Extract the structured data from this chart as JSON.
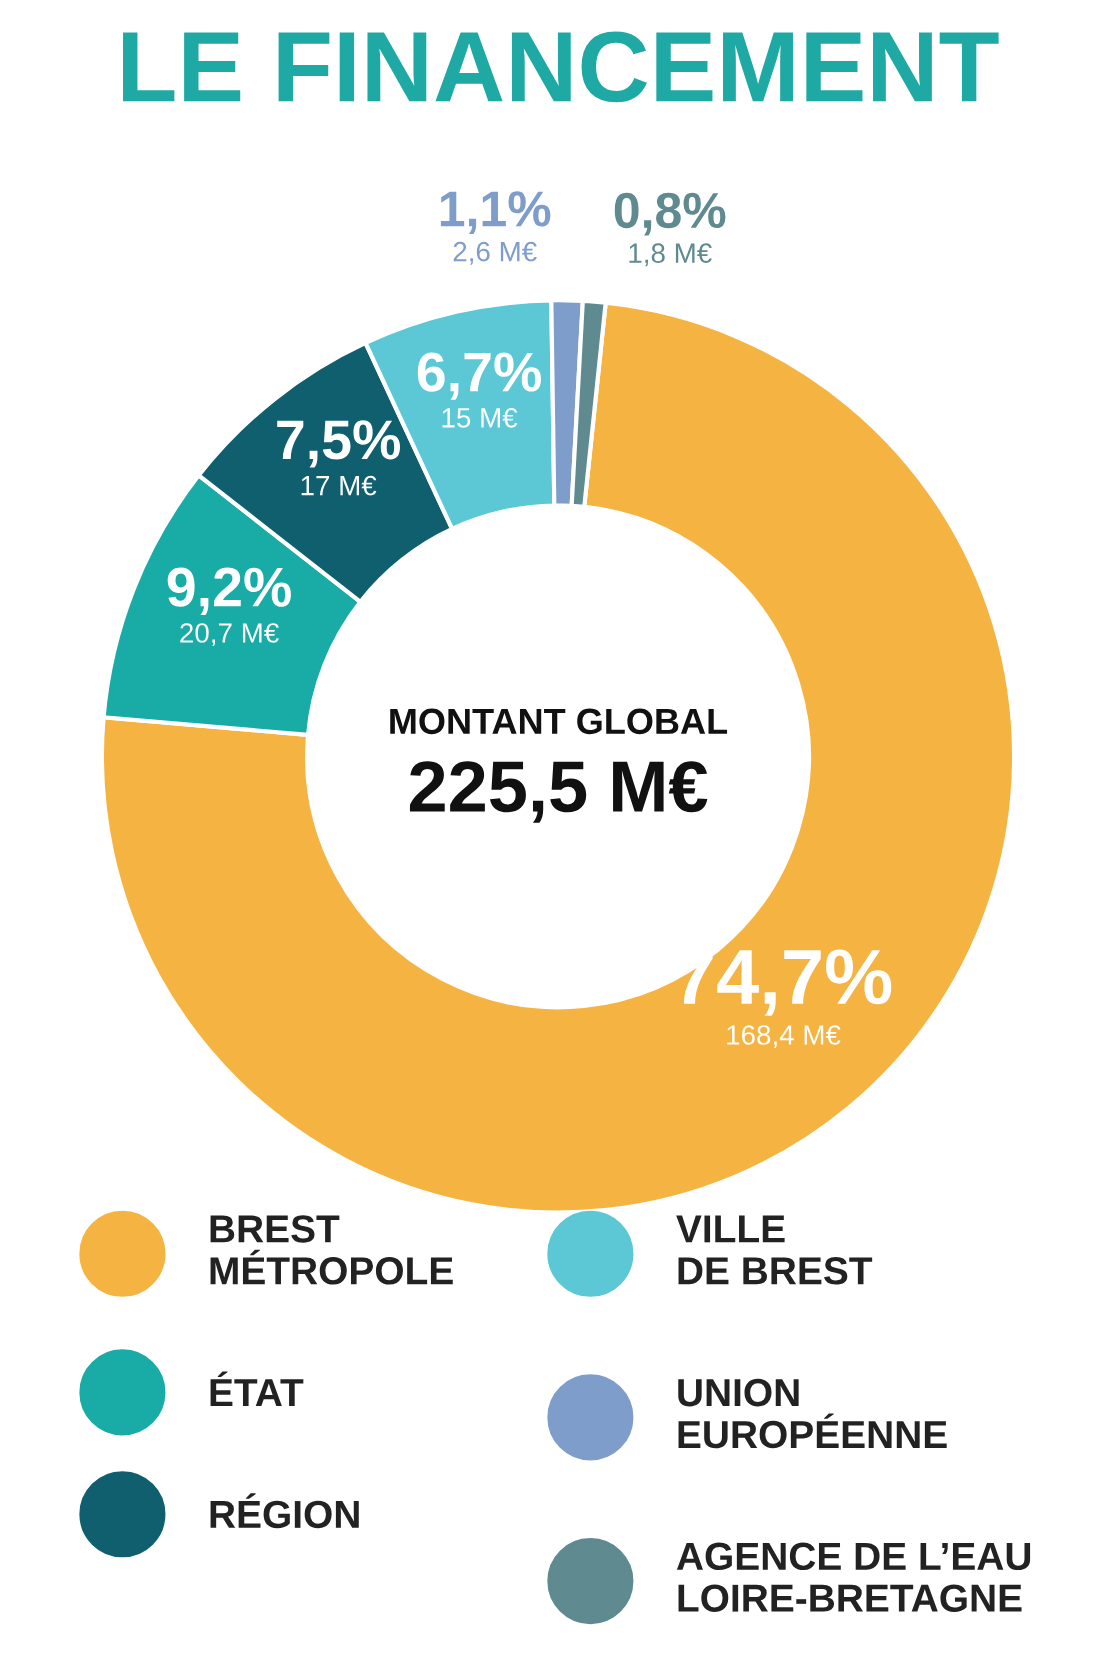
{
  "chart_data": {
    "type": "donut",
    "title": "LE FINANCEMENT",
    "categories": [
      "BREST\nMÉTROPOLE",
      "ÉTAT",
      "RÉGION",
      "VILLE\nDE BREST",
      "UNION\nEUROPÉENNE",
      "AGENCE DE L’EAU\nLOIRE-BRETAGNE"
    ],
    "values": [
      74.7,
      9.2,
      7.5,
      6.7,
      1.1,
      0.8
    ],
    "colors": [
      "#f5b342",
      "#19aba6",
      "#0f5f6f",
      "#5cc8d6",
      "#7e9dca",
      "#5e8a90"
    ],
    "value_labels": [
      "74,7%\n168,4 M€",
      "9,2%\n20,7 M€",
      "7,5%\n17 M€",
      "6,7%\n15 M€",
      "1,1%\n2,6 M€",
      "0,8%\n1,8 M€"
    ],
    "annotations": [
      "MONTANT GLOBAL",
      "225,5 M€"
    ],
    "legend": "bottom"
  }
}
